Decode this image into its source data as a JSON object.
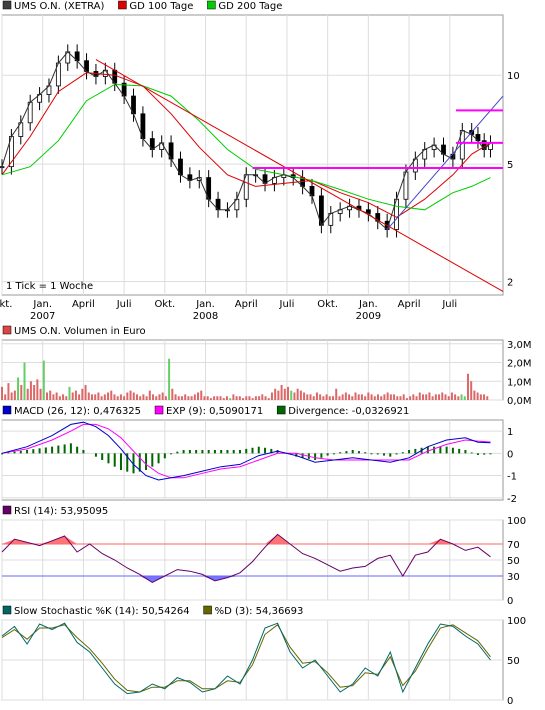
{
  "chart_data": [
    {
      "type": "line",
      "panel": "price",
      "legend": [
        {
          "label": "UMS O.N. (XETRA)",
          "color": "#404040"
        },
        {
          "label": "GD 100 Tage",
          "color": "#dd0000"
        },
        {
          "label": "GD 200 Tage",
          "color": "#00cc00"
        }
      ],
      "scale": "log",
      "ylim": [
        1.8,
        16
      ],
      "y_ticks": [
        {
          "value": 10,
          "label": "10"
        },
        {
          "value": 5,
          "label": "5"
        },
        {
          "value": 2,
          "label": "2"
        }
      ],
      "x_ticks": [
        {
          "week": 0,
          "label": "Okt."
        },
        {
          "week": 13,
          "label": "Jan.",
          "year": "2007"
        },
        {
          "week": 26,
          "label": "April"
        },
        {
          "week": 39,
          "label": "Juli"
        },
        {
          "week": 52,
          "label": "Okt."
        },
        {
          "week": 65,
          "label": "Jan.",
          "year": "2008"
        },
        {
          "week": 78,
          "label": "April"
        },
        {
          "week": 91,
          "label": "Juli"
        },
        {
          "week": 104,
          "label": "Okt."
        },
        {
          "week": 117,
          "label": "Jan.",
          "year": "2009"
        },
        {
          "week": 130,
          "label": "April"
        },
        {
          "week": 143,
          "label": "Juli"
        }
      ],
      "annotation": "1 Tick = 1 Woche",
      "series": [
        {
          "role": "price",
          "x": [
            0,
            3,
            6,
            9,
            12,
            15,
            18,
            21,
            24,
            27,
            30,
            33,
            36,
            39,
            42,
            45,
            48,
            51,
            54,
            57,
            60,
            63,
            66,
            69,
            72,
            75,
            78,
            81,
            84,
            87,
            90,
            93,
            96,
            99,
            102,
            105,
            108,
            111,
            114,
            117,
            120,
            123,
            126,
            129,
            132,
            135,
            138,
            141,
            144,
            147,
            150,
            152,
            154,
            156
          ],
          "values": [
            4.9,
            6.2,
            6.9,
            8.1,
            8.6,
            9.2,
            11.0,
            12.0,
            11.2,
            10.3,
            9.9,
            10.4,
            9.4,
            8.5,
            7.4,
            6.1,
            5.6,
            5.9,
            5.2,
            4.6,
            4.4,
            4.5,
            3.8,
            3.5,
            3.5,
            3.8,
            4.6,
            4.6,
            4.3,
            4.5,
            4.6,
            4.5,
            4.2,
            3.9,
            3.1,
            3.4,
            3.5,
            3.6,
            3.5,
            3.4,
            3.2,
            3.0,
            3.8,
            4.7,
            5.2,
            5.6,
            5.8,
            5.4,
            5.2,
            6.5,
            6.3,
            6.0,
            5.6,
            5.9
          ]
        },
        {
          "role": "GD 100",
          "x": [
            0,
            9,
            18,
            27,
            36,
            45,
            54,
            63,
            72,
            81,
            90,
            99,
            108,
            117,
            126,
            135,
            144,
            150,
            156
          ],
          "values": [
            4.6,
            6.2,
            8.8,
            10.2,
            10.0,
            9.2,
            7.4,
            5.7,
            4.6,
            4.2,
            4.3,
            4.4,
            4.0,
            3.7,
            3.3,
            3.8,
            4.6,
            5.4,
            5.9
          ]
        },
        {
          "role": "GD 200",
          "x": [
            0,
            9,
            18,
            27,
            36,
            45,
            54,
            63,
            72,
            81,
            90,
            99,
            108,
            117,
            126,
            135,
            144,
            150,
            156
          ],
          "values": [
            4.6,
            4.9,
            6.0,
            8.2,
            9.3,
            9.2,
            8.5,
            7.0,
            5.6,
            4.8,
            4.6,
            4.4,
            4.1,
            3.8,
            3.6,
            3.5,
            4.0,
            4.2,
            4.5
          ]
        }
      ],
      "trendlines": [
        {
          "color": "#dd0000",
          "from": {
            "week": 30,
            "value": 11.3
          },
          "to": {
            "week": 160,
            "value": 1.85
          }
        },
        {
          "color": "#4444cc",
          "from": {
            "week": 123,
            "value": 3.0
          },
          "to": {
            "week": 160,
            "value": 8.5
          }
        },
        {
          "color": "#ff00ff",
          "from": {
            "week": 80,
            "value": 4.85
          },
          "to": {
            "week": 160,
            "value": 4.85
          }
        },
        {
          "color": "#ff00ff",
          "from": {
            "week": 145,
            "value": 7.6
          },
          "to": {
            "week": 160,
            "value": 7.6
          }
        },
        {
          "color": "#ff00ff",
          "from": {
            "week": 145,
            "value": 5.9
          },
          "to": {
            "week": 160,
            "value": 5.9
          }
        }
      ]
    },
    {
      "type": "bar",
      "panel": "volume",
      "legend": [
        {
          "label": "UMS O.N. Volumen in Euro",
          "color": "#dd4444"
        }
      ],
      "ylim": [
        0,
        3.2
      ],
      "y_ticks": [
        {
          "value": 3.0,
          "label": "3,0M"
        },
        {
          "value": 2.0,
          "label": "2,0M"
        },
        {
          "value": 1.0,
          "label": "1,0M"
        },
        {
          "value": 0.0,
          "label": "0,0M"
        }
      ],
      "values": [
        0.7,
        0.3,
        0.9,
        0.4,
        0.5,
        1.2,
        0.8,
        2.0,
        0.6,
        1.0,
        0.8,
        1.1,
        0.6,
        2.1,
        0.4,
        0.5,
        0.3,
        0.4,
        0.2,
        0.3,
        0.2,
        0.7,
        0.4,
        0.5,
        0.3,
        0.6,
        0.8,
        0.4,
        0.3,
        0.3,
        0.4,
        0.2,
        0.3,
        0.4,
        0.5,
        0.3,
        0.2,
        0.3,
        0.2,
        0.4,
        0.5,
        0.4,
        0.3,
        0.2,
        0.3,
        0.2,
        0.5,
        0.3,
        0.2,
        0.3,
        0.4,
        0.2,
        2.2,
        0.6,
        0.3,
        0.2,
        0.2,
        0.3,
        0.2,
        0.2,
        0.3,
        0.4,
        0.5,
        0.2,
        0.2,
        0.1,
        0.2,
        0.2,
        0.2,
        0.1,
        0.2,
        0.1,
        0.3,
        0.2,
        0.2,
        0.1,
        0.2,
        0.2,
        0.1,
        0.2,
        0.2,
        0.3,
        0.2,
        0.1,
        0.4,
        0.6,
        0.5,
        0.8,
        0.6,
        0.7,
        0.5,
        0.4,
        0.6,
        0.5,
        0.4,
        0.3,
        0.3,
        0.2,
        0.4,
        0.3,
        0.2,
        0.3,
        0.2,
        0.2,
        0.6,
        0.2,
        0.3,
        0.4,
        0.3,
        0.2,
        0.4,
        0.3,
        0.3,
        0.2,
        0.4,
        0.3,
        0.2,
        0.3,
        0.2,
        0.3,
        0.4,
        0.3,
        0.3,
        0.2,
        0.2,
        0.3,
        0.1,
        0.2,
        0.3,
        0.2,
        0.4,
        0.3,
        0.3,
        0.4,
        0.2,
        0.3,
        0.3,
        0.4,
        0.3,
        0.2,
        0.4,
        0.3,
        0.2,
        0.3,
        0.2,
        1.4,
        1.0,
        0.5,
        0.4,
        0.3,
        0.3,
        0.2
      ],
      "up_weeks": [
        5,
        7,
        13,
        21,
        52,
        71,
        90,
        143,
        144
      ]
    },
    {
      "type": "line",
      "panel": "macd",
      "legend": [
        {
          "label": "MACD (26, 12): 0,476325",
          "color": "#0000cc"
        },
        {
          "label": "EXP (9): 0,5090171",
          "color": "#ff00ff"
        },
        {
          "label": "Divergence: -0,0326921",
          "color": "#006600"
        }
      ],
      "ylim": [
        -2.1,
        1.5
      ],
      "y_ticks": [
        {
          "value": 1,
          "label": "1"
        },
        {
          "value": 0,
          "label": "0"
        },
        {
          "value": -1,
          "label": "-1"
        },
        {
          "value": -2,
          "label": "-2"
        }
      ],
      "series": [
        {
          "name": "MACD (26, 12): 0,476325",
          "x": [
            0,
            8,
            16,
            22,
            26,
            30,
            34,
            38,
            42,
            46,
            50,
            54,
            58,
            64,
            70,
            76,
            82,
            88,
            94,
            100,
            106,
            112,
            118,
            124,
            130,
            136,
            142,
            148,
            152,
            156
          ],
          "values": [
            0.0,
            0.3,
            0.8,
            1.3,
            1.4,
            1.2,
            0.8,
            0.2,
            -0.5,
            -1.0,
            -1.2,
            -1.1,
            -1.0,
            -0.8,
            -0.6,
            -0.5,
            -0.1,
            0.1,
            -0.1,
            -0.4,
            -0.3,
            -0.2,
            -0.3,
            -0.4,
            -0.2,
            0.3,
            0.6,
            0.7,
            0.5,
            0.48
          ]
        },
        {
          "name": "EXP (9): 0,5090171",
          "x": [
            0,
            8,
            16,
            22,
            26,
            30,
            34,
            38,
            42,
            46,
            50,
            54,
            58,
            64,
            70,
            76,
            82,
            88,
            94,
            100,
            106,
            112,
            118,
            124,
            130,
            136,
            142,
            148,
            152,
            156
          ],
          "values": [
            0.0,
            0.2,
            0.6,
            1.0,
            1.3,
            1.3,
            1.1,
            0.7,
            0.1,
            -0.5,
            -0.9,
            -1.1,
            -1.1,
            -0.9,
            -0.7,
            -0.6,
            -0.3,
            0.0,
            0.0,
            -0.2,
            -0.3,
            -0.3,
            -0.3,
            -0.3,
            -0.3,
            0.1,
            0.4,
            0.6,
            0.55,
            0.51
          ]
        }
      ]
    },
    {
      "type": "line",
      "panel": "rsi",
      "legend": [
        {
          "label": "RSI (14): 53,95095",
          "color": "#660066"
        }
      ],
      "ylim": [
        0,
        100
      ],
      "y_ticks": [
        {
          "value": 100,
          "label": "100"
        },
        {
          "value": 70,
          "label": "70"
        },
        {
          "value": 50,
          "label": "50"
        },
        {
          "value": 30,
          "label": "30"
        },
        {
          "value": 0,
          "label": "0"
        }
      ],
      "levels": [
        {
          "value": 70,
          "color": "#ff6666"
        },
        {
          "value": 30,
          "color": "#6666ff"
        }
      ],
      "series": [
        {
          "name": "RSI (14): 53,95095",
          "x": [
            0,
            4,
            8,
            12,
            16,
            20,
            24,
            28,
            32,
            36,
            40,
            44,
            48,
            52,
            56,
            60,
            64,
            68,
            72,
            76,
            80,
            84,
            88,
            92,
            96,
            100,
            104,
            108,
            112,
            116,
            120,
            124,
            128,
            132,
            136,
            140,
            144,
            148,
            152,
            156
          ],
          "values": [
            60,
            76,
            72,
            68,
            74,
            80,
            60,
            70,
            58,
            50,
            40,
            32,
            22,
            30,
            38,
            36,
            32,
            24,
            28,
            34,
            48,
            66,
            82,
            70,
            58,
            52,
            44,
            36,
            40,
            42,
            52,
            56,
            30,
            56,
            60,
            76,
            70,
            62,
            66,
            54
          ]
        }
      ]
    },
    {
      "type": "line",
      "panel": "stochastic",
      "legend": [
        {
          "label": "Slow Stochastic %K (14): 50,54264",
          "color": "#006666"
        },
        {
          "label": "%D (3): 54,36693",
          "color": "#666600"
        }
      ],
      "ylim": [
        0,
        100
      ],
      "y_ticks": [
        {
          "value": 100,
          "label": "100"
        },
        {
          "value": 50,
          "label": "50"
        },
        {
          "value": 0,
          "label": "0"
        }
      ],
      "series": [
        {
          "name": "Slow Stochastic %K (14): 50,54264",
          "x": [
            0,
            4,
            8,
            12,
            16,
            20,
            24,
            28,
            32,
            36,
            40,
            44,
            48,
            52,
            56,
            60,
            64,
            68,
            72,
            76,
            80,
            84,
            88,
            92,
            96,
            100,
            104,
            108,
            112,
            116,
            120,
            124,
            128,
            132,
            136,
            140,
            144,
            148,
            152,
            156
          ],
          "values": [
            80,
            92,
            70,
            95,
            88,
            96,
            72,
            60,
            40,
            20,
            8,
            10,
            20,
            14,
            28,
            22,
            10,
            14,
            30,
            20,
            50,
            90,
            96,
            60,
            40,
            50,
            30,
            10,
            20,
            40,
            30,
            60,
            10,
            40,
            70,
            95,
            92,
            80,
            70,
            50
          ]
        },
        {
          "name": "%D (3): 54,36693",
          "x": [
            0,
            4,
            8,
            12,
            16,
            20,
            24,
            28,
            32,
            36,
            40,
            44,
            48,
            52,
            56,
            60,
            64,
            68,
            72,
            76,
            80,
            84,
            88,
            92,
            96,
            100,
            104,
            108,
            112,
            116,
            120,
            124,
            128,
            132,
            136,
            140,
            144,
            148,
            152,
            156
          ],
          "values": [
            78,
            88,
            76,
            90,
            90,
            94,
            78,
            64,
            46,
            26,
            12,
            10,
            16,
            16,
            24,
            24,
            14,
            14,
            24,
            22,
            44,
            82,
            94,
            66,
            46,
            48,
            34,
            16,
            18,
            34,
            32,
            54,
            18,
            36,
            64,
            90,
            94,
            84,
            74,
            54
          ]
        }
      ]
    }
  ]
}
